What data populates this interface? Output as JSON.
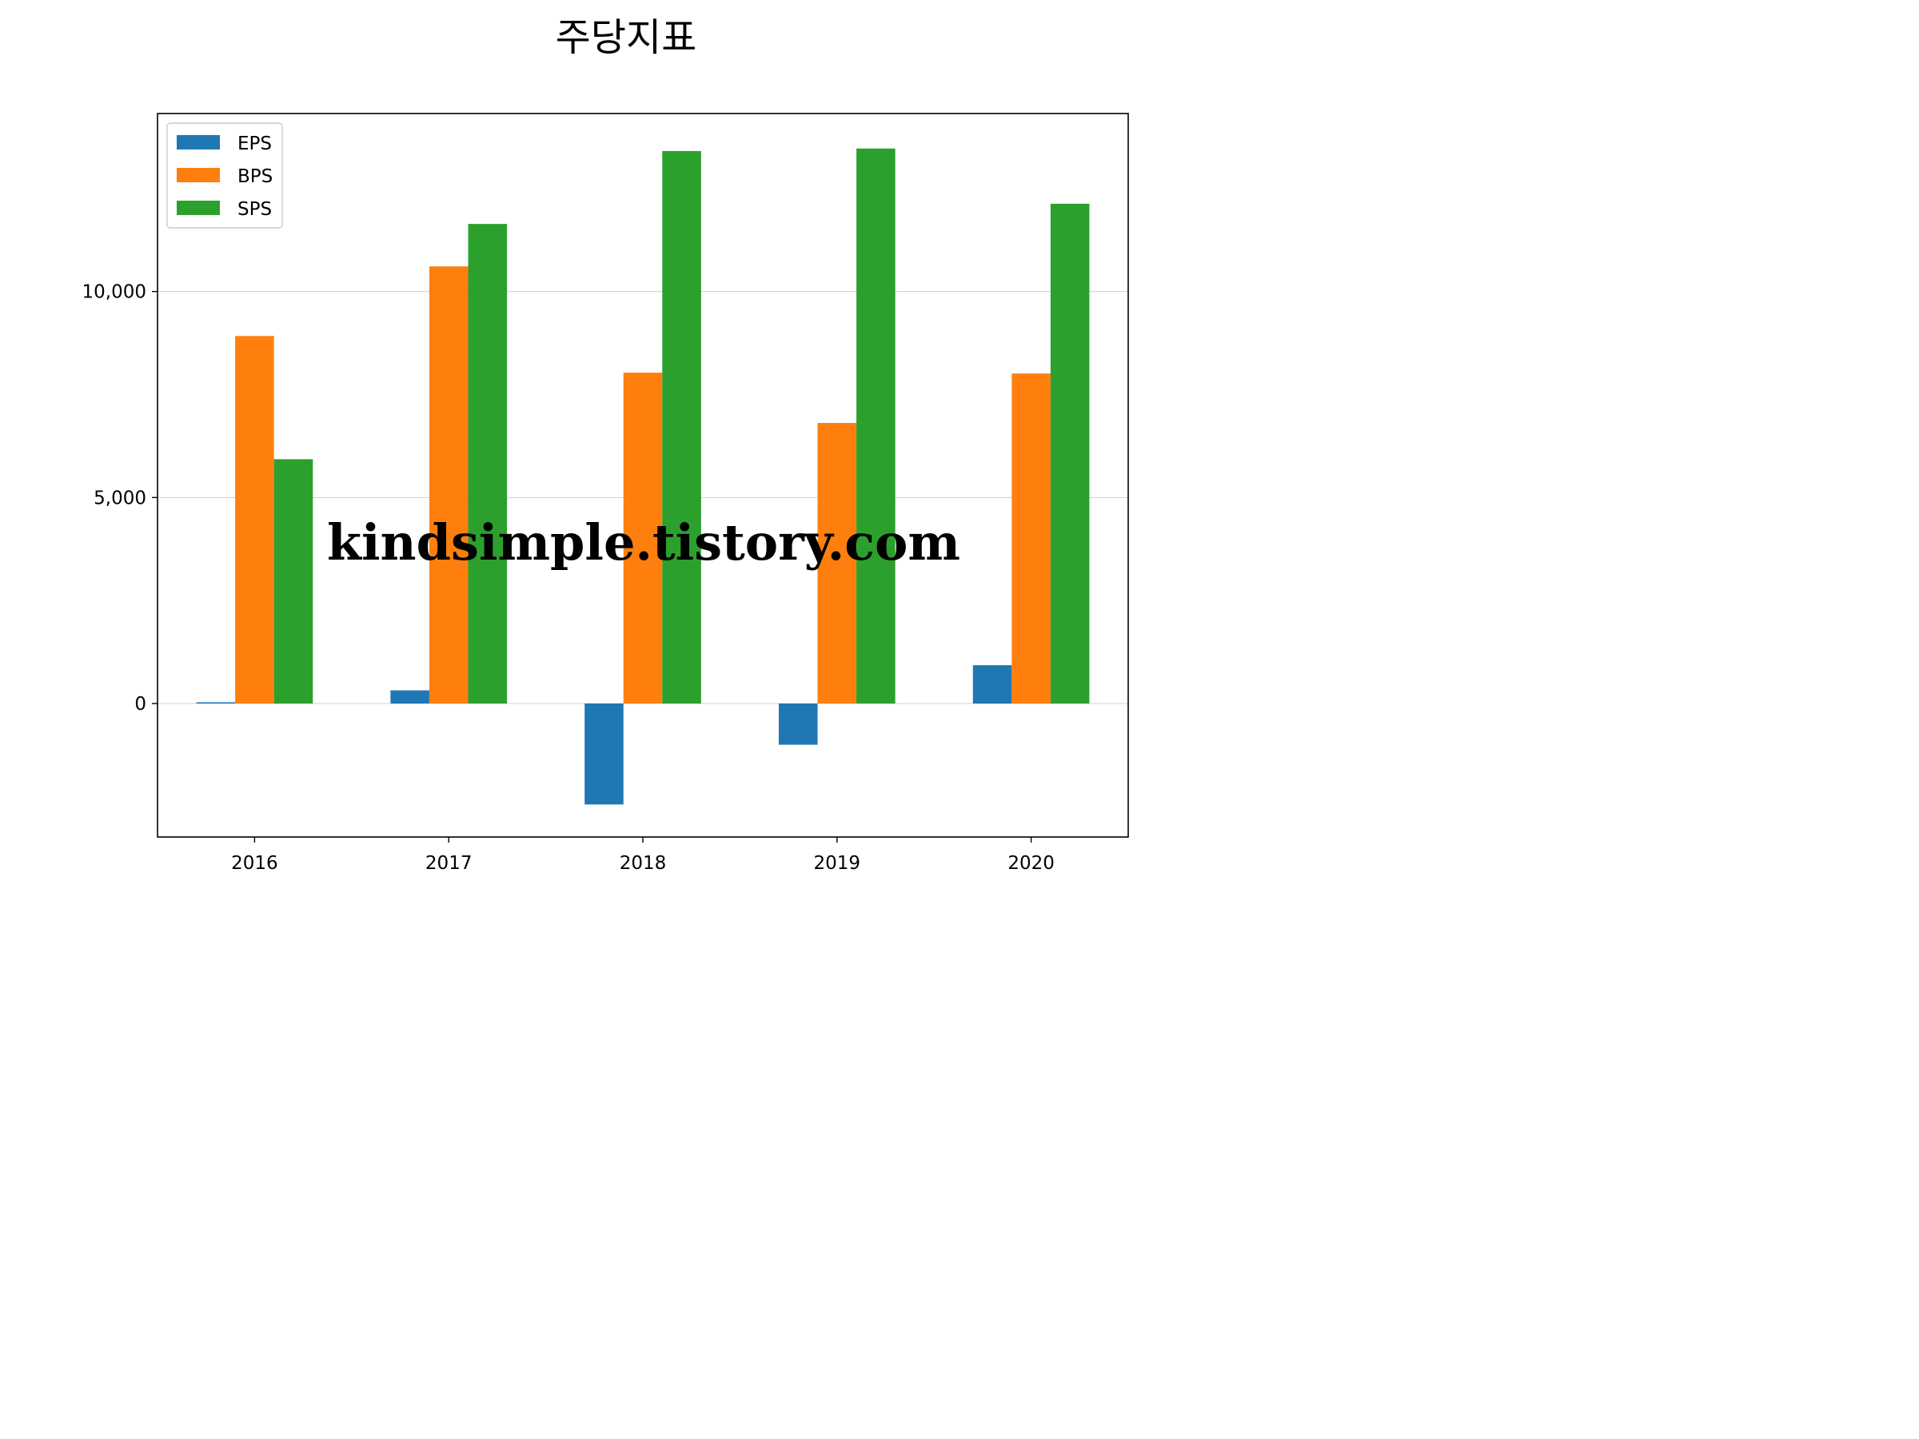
{
  "chart_data": {
    "type": "bar",
    "title": "주당지표",
    "xlabel": "",
    "ylabel": "",
    "categories": [
      "2016",
      "2017",
      "2018",
      "2019",
      "2020"
    ],
    "series": [
      {
        "name": "EPS",
        "color": "#1f77b4",
        "values": [
          30,
          320,
          -2450,
          -1000,
          930
        ]
      },
      {
        "name": "BPS",
        "color": "#ff7f0e",
        "values": [
          8920,
          10610,
          8030,
          6810,
          8010
        ]
      },
      {
        "name": "SPS",
        "color": "#2ca02c",
        "values": [
          5930,
          11640,
          13410,
          13470,
          12130
        ]
      }
    ],
    "ylim": [
      -3240,
      14320
    ],
    "yticks": [
      0,
      5000,
      10000
    ],
    "ytick_labels": [
      "0",
      "5,000",
      "10,000"
    ],
    "grid": "y",
    "legend_position": "upper-left"
  },
  "watermark": {
    "text": "kindsimple.tistory.com",
    "color": "#e8a5ea"
  }
}
